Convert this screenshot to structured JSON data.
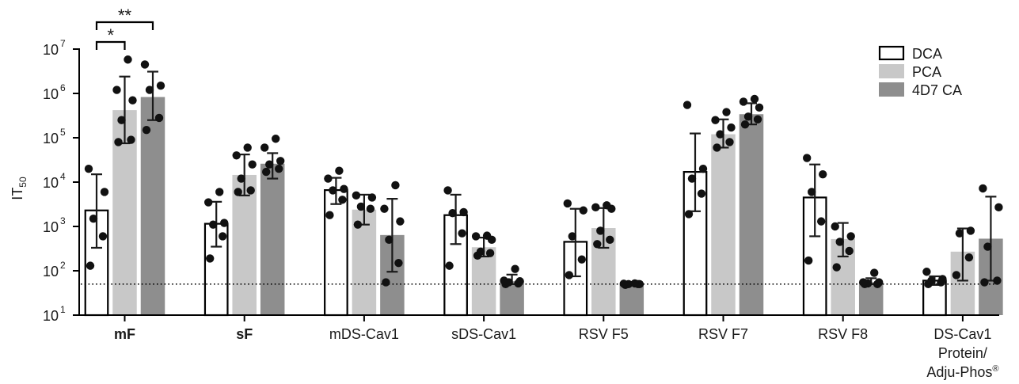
{
  "chart_data": {
    "type": "bar",
    "title": "",
    "xlabel": "",
    "ylabel": {
      "main": "IT",
      "sub": "50"
    },
    "yscale": "log",
    "ylim": [
      10,
      10000000
    ],
    "yticks": [
      {
        "base": "10",
        "exp": "1",
        "value": 10
      },
      {
        "base": "10",
        "exp": "2",
        "value": 100
      },
      {
        "base": "10",
        "exp": "3",
        "value": 1000
      },
      {
        "base": "10",
        "exp": "4",
        "value": 10000
      },
      {
        "base": "10",
        "exp": "5",
        "value": 100000
      },
      {
        "base": "10",
        "exp": "6",
        "value": 1000000
      },
      {
        "base": "10",
        "exp": "7",
        "value": 10000000
      }
    ],
    "grid": false,
    "legend_position": "top-right",
    "reference_line": {
      "value": 50,
      "style": "dotted"
    },
    "categories": [
      {
        "lines": [
          "mF"
        ],
        "bold": true
      },
      {
        "lines": [
          "sF"
        ],
        "bold": true
      },
      {
        "lines": [
          "mDS-Cav1"
        ],
        "bold": false
      },
      {
        "lines": [
          "sDS-Cav1"
        ],
        "bold": false
      },
      {
        "lines": [
          "RSV F5"
        ],
        "bold": false
      },
      {
        "lines": [
          "RSV F7"
        ],
        "bold": false
      },
      {
        "lines": [
          "RSV F8"
        ],
        "bold": false
      },
      {
        "lines": [
          "DS-Cav1",
          "Protein/",
          "Adju-Phos®"
        ],
        "bold": false
      }
    ],
    "series": [
      {
        "name": "DCA",
        "fill": "#ffffff",
        "stroke": "#000000",
        "values": [
          2300,
          1150,
          6600,
          1800,
          450,
          17000,
          4500,
          60
        ],
        "err_low": [
          330,
          350,
          3200,
          400,
          75,
          2200,
          600,
          48
        ],
        "err_high": [
          15000,
          3600,
          12500,
          5200,
          2500,
          125000,
          25000,
          75
        ],
        "points": [
          [
            130,
            600,
            1500,
            6000,
            20000
          ],
          [
            190,
            600,
            1100,
            1200,
            3500,
            6000
          ],
          [
            1800,
            4000,
            6500,
            7000,
            12000,
            18000
          ],
          [
            130,
            700,
            2000,
            2100,
            6500
          ],
          [
            80,
            180,
            600,
            2300,
            3300
          ],
          [
            1900,
            5500,
            12000,
            20000,
            550000
          ],
          [
            170,
            1300,
            6000,
            15000,
            35000
          ],
          [
            50,
            55,
            60,
            65,
            95
          ]
        ]
      },
      {
        "name": "PCA",
        "fill": "#c8c8c8",
        "stroke": "#c8c8c8",
        "values": [
          420000,
          14500,
          2400,
          340,
          920,
          120000,
          520,
          270
        ],
        "err_low": [
          75000,
          5000,
          1100,
          210,
          330,
          60000,
          210,
          60
        ],
        "err_high": [
          2400000,
          42000,
          5200,
          560,
          2600,
          260000,
          1200,
          900
        ],
        "points": [
          [
            80000,
            90000,
            250000,
            700000,
            1200000,
            5800000
          ],
          [
            6000,
            6500,
            12000,
            25000,
            40000,
            60000
          ],
          [
            1100,
            2500,
            2800,
            4500,
            5000
          ],
          [
            220,
            250,
            270,
            500,
            600,
            620
          ],
          [
            400,
            500,
            800,
            2500,
            2700,
            3000
          ],
          [
            60000,
            80000,
            120000,
            170000,
            250000,
            380000
          ],
          [
            120,
            280,
            450,
            600,
            1000
          ],
          [
            80,
            200,
            700,
            800
          ]
        ]
      },
      {
        "name": "4D7 CA",
        "fill": "#8e8e8e",
        "stroke": "#8e8e8e",
        "values": [
          830000,
          26000,
          640,
          58,
          50,
          340000,
          55,
          530
        ],
        "err_low": [
          250000,
          12000,
          95,
          50,
          50,
          200000,
          50,
          60
        ],
        "err_high": [
          3100000,
          45000,
          4200,
          82,
          52,
          600000,
          68,
          4700
        ],
        "points": [
          [
            150000,
            280000,
            1200000,
            1500000,
            4500000
          ],
          [
            17000,
            20000,
            25000,
            30000,
            60000,
            95000
          ],
          [
            55,
            150,
            500,
            1300,
            2500,
            8500
          ],
          [
            50,
            52,
            55,
            58,
            60,
            110
          ],
          [
            48,
            50,
            50,
            50,
            51,
            52
          ],
          [
            200000,
            260000,
            300000,
            480000,
            650000,
            750000
          ],
          [
            50,
            50,
            52,
            55,
            55,
            90
          ],
          [
            55,
            60,
            350,
            2700,
            7200
          ]
        ]
      }
    ],
    "significance": [
      {
        "label": "**",
        "category": 0,
        "from_series": 0,
        "to_series": 2,
        "level": 2
      },
      {
        "label": "*",
        "category": 0,
        "from_series": 0,
        "to_series": 1,
        "level": 1
      }
    ]
  }
}
